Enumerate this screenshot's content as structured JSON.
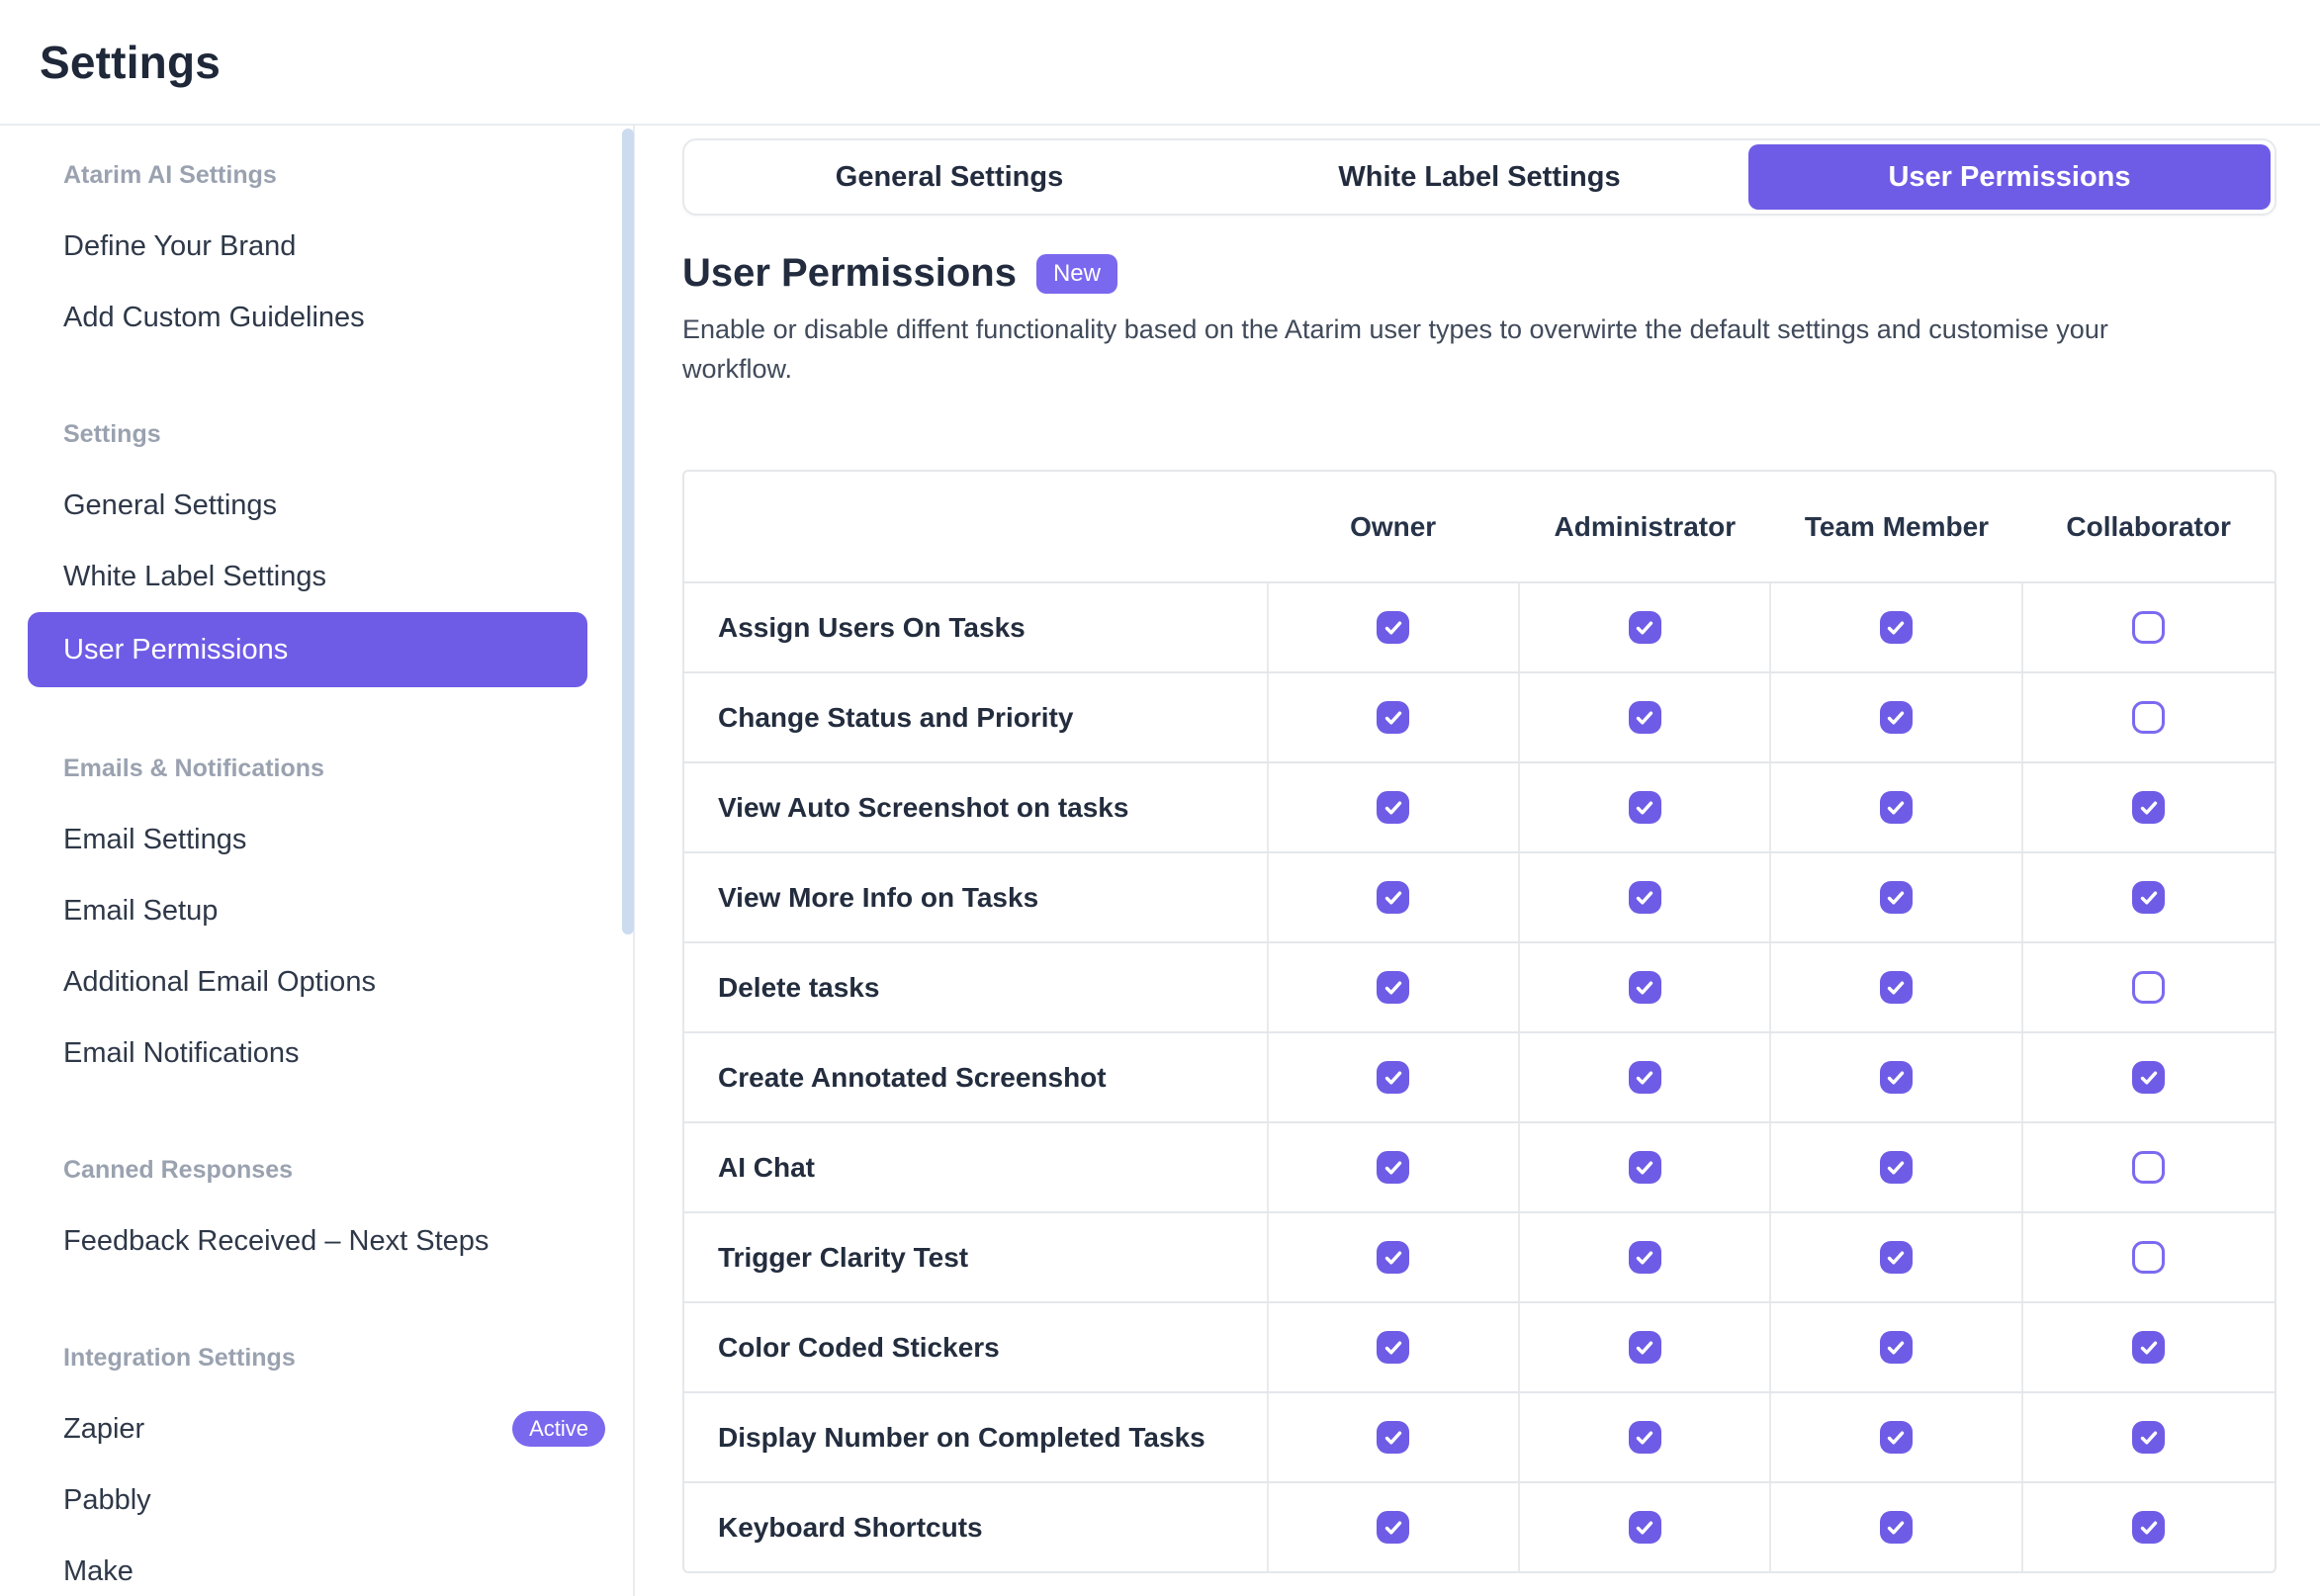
{
  "page_title": "Settings",
  "colors": {
    "accent": "#6e5ce6",
    "badge": "#7a68ef",
    "scrollbar": "#ccdbef"
  },
  "sidebar": {
    "sections": [
      {
        "header": "Atarim AI Settings",
        "items": [
          {
            "label": "Define Your Brand"
          },
          {
            "label": "Add Custom Guidelines"
          }
        ]
      },
      {
        "header": "Settings",
        "items": [
          {
            "label": "General Settings"
          },
          {
            "label": "White Label Settings"
          },
          {
            "label": "User Permissions",
            "active": true
          }
        ]
      },
      {
        "header": "Emails & Notifications",
        "items": [
          {
            "label": "Email Settings"
          },
          {
            "label": "Email Setup"
          },
          {
            "label": "Additional Email Options"
          },
          {
            "label": "Email Notifications"
          }
        ]
      },
      {
        "header": "Canned Responses",
        "items": [
          {
            "label": "Feedback Received – Next Steps"
          }
        ]
      },
      {
        "header": "Integration Settings",
        "items": [
          {
            "label": "Zapier",
            "badge": "Active"
          },
          {
            "label": "Pabbly"
          },
          {
            "label": "Make"
          }
        ]
      }
    ]
  },
  "tabs": [
    {
      "label": "General Settings"
    },
    {
      "label": "White Label Settings"
    },
    {
      "label": "User Permissions",
      "active": true
    }
  ],
  "content": {
    "title": "User Permissions",
    "badge": "New",
    "description": "Enable or disable diffent functionality based on the Atarim user types to overwirte the default settings and customise your workflow."
  },
  "table": {
    "columns": [
      "Owner",
      "Administrator",
      "Team Member",
      "Collaborator"
    ],
    "rows": [
      {
        "label": "Assign Users On Tasks",
        "checks": [
          true,
          true,
          true,
          false
        ]
      },
      {
        "label": "Change Status and Priority",
        "checks": [
          true,
          true,
          true,
          false
        ]
      },
      {
        "label": "View Auto Screenshot on tasks",
        "checks": [
          true,
          true,
          true,
          true
        ]
      },
      {
        "label": "View More Info on Tasks",
        "checks": [
          true,
          true,
          true,
          true
        ]
      },
      {
        "label": "Delete tasks",
        "checks": [
          true,
          true,
          true,
          false
        ]
      },
      {
        "label": "Create Annotated Screenshot",
        "checks": [
          true,
          true,
          true,
          true
        ]
      },
      {
        "label": "AI Chat",
        "checks": [
          true,
          true,
          true,
          false
        ]
      },
      {
        "label": "Trigger Clarity Test",
        "checks": [
          true,
          true,
          true,
          false
        ]
      },
      {
        "label": "Color Coded Stickers",
        "checks": [
          true,
          true,
          true,
          true
        ]
      },
      {
        "label": "Display Number on Completed Tasks",
        "checks": [
          true,
          true,
          true,
          true
        ]
      },
      {
        "label": "Keyboard Shortcuts",
        "checks": [
          true,
          true,
          true,
          true
        ]
      }
    ]
  }
}
